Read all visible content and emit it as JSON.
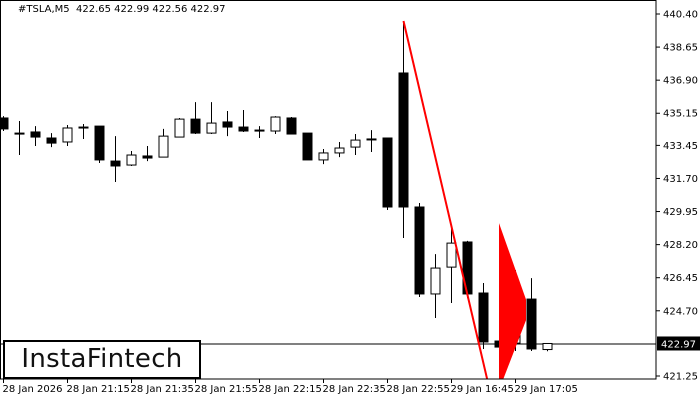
{
  "header": {
    "symbol": "#TSLA,M5",
    "ohlc": "422.65 422.99 422.56 422.97"
  },
  "logo": {
    "text": "InstaFintech"
  },
  "colors": {
    "bull_body": "#ffffff",
    "bear_body": "#000000",
    "pattern": "#ff0000",
    "background": "#ffffff"
  },
  "chart_data": {
    "type": "candlestick",
    "symbol": "#TSLA",
    "timeframe": "M5",
    "ylim": [
      421.25,
      440.4
    ],
    "y_ticks": [
      "440.40",
      "438.65",
      "436.90",
      "435.15",
      "433.45",
      "431.70",
      "429.95",
      "428.20",
      "426.45",
      "424.70",
      "421.25"
    ],
    "x_tick_labels": [
      {
        "candle": 0,
        "label": "28 Jan 2026"
      },
      {
        "candle": 4,
        "label": "28 Jan 21:15"
      },
      {
        "candle": 8,
        "label": "28 Jan 21:35"
      },
      {
        "candle": 12,
        "label": "28 Jan 21:55"
      },
      {
        "candle": 16,
        "label": "28 Jan 22:15"
      },
      {
        "candle": 20,
        "label": "28 Jan 22:35"
      },
      {
        "candle": 24,
        "label": "28 Jan 22:55"
      },
      {
        "candle": 28,
        "label": "29 Jan 16:45"
      },
      {
        "candle": 32,
        "label": "29 Jan 17:05"
      }
    ],
    "current_price": "422.97",
    "candles": [
      [
        434.9,
        435.0,
        434.21,
        434.32
      ],
      [
        434.1,
        434.74,
        432.94,
        434.08
      ],
      [
        434.16,
        434.47,
        433.42,
        433.89
      ],
      [
        433.84,
        434.1,
        433.36,
        433.57
      ],
      [
        433.63,
        434.53,
        433.42,
        434.37
      ],
      [
        434.4,
        434.58,
        433.79,
        434.42
      ],
      [
        434.47,
        434.47,
        432.52,
        432.68
      ],
      [
        432.62,
        433.94,
        431.51,
        432.36
      ],
      [
        432.41,
        433.15,
        432.36,
        432.94
      ],
      [
        432.89,
        433.42,
        432.62,
        432.78
      ],
      [
        432.83,
        434.32,
        432.83,
        433.94
      ],
      [
        433.89,
        434.9,
        433.89,
        434.84
      ],
      [
        434.84,
        435.74,
        434.05,
        434.1
      ],
      [
        434.1,
        435.74,
        434.05,
        434.63
      ],
      [
        434.69,
        435.27,
        433.94,
        434.42
      ],
      [
        434.42,
        435.32,
        434.16,
        434.21
      ],
      [
        434.26,
        434.47,
        433.84,
        434.24
      ],
      [
        434.21,
        435.0,
        434.05,
        434.95
      ],
      [
        434.9,
        434.95,
        434.05,
        434.05
      ],
      [
        434.1,
        434.1,
        432.68,
        432.68
      ],
      [
        432.68,
        433.26,
        432.46,
        433.05
      ],
      [
        433.05,
        433.63,
        432.83,
        433.31
      ],
      [
        433.36,
        434.05,
        432.94,
        433.73
      ],
      [
        433.79,
        434.26,
        433.1,
        433.77
      ],
      [
        433.84,
        433.84,
        430.03,
        430.19
      ],
      [
        437.28,
        440.03,
        428.55,
        430.19
      ],
      [
        430.19,
        430.4,
        425.43,
        425.59
      ],
      [
        425.59,
        427.7,
        424.32,
        426.96
      ],
      [
        427.01,
        429.08,
        425.11,
        428.28
      ],
      [
        428.34,
        428.4,
        425.37,
        425.59
      ],
      [
        425.64,
        426.17,
        422.68,
        423.05
      ],
      [
        423.1,
        423.73,
        421.56,
        422.78
      ],
      [
        422.99,
        426.85,
        422.57,
        425.37
      ],
      [
        425.32,
        426.43,
        422.57,
        422.68
      ],
      [
        422.65,
        422.99,
        422.56,
        422.97
      ]
    ],
    "pattern": {
      "name": "bearish pennant",
      "pole": [
        {
          "candle": 25,
          "price": 440.03
        },
        {
          "candle": 31,
          "price": 419.76
        }
      ],
      "pennant": [
        {
          "candle": 31,
          "price": 429.34
        },
        {
          "candle": 33,
          "price": 425.3
        },
        {
          "candle": 33,
          "price": 424.2
        },
        {
          "candle": 31,
          "price": 420.5
        }
      ]
    }
  }
}
